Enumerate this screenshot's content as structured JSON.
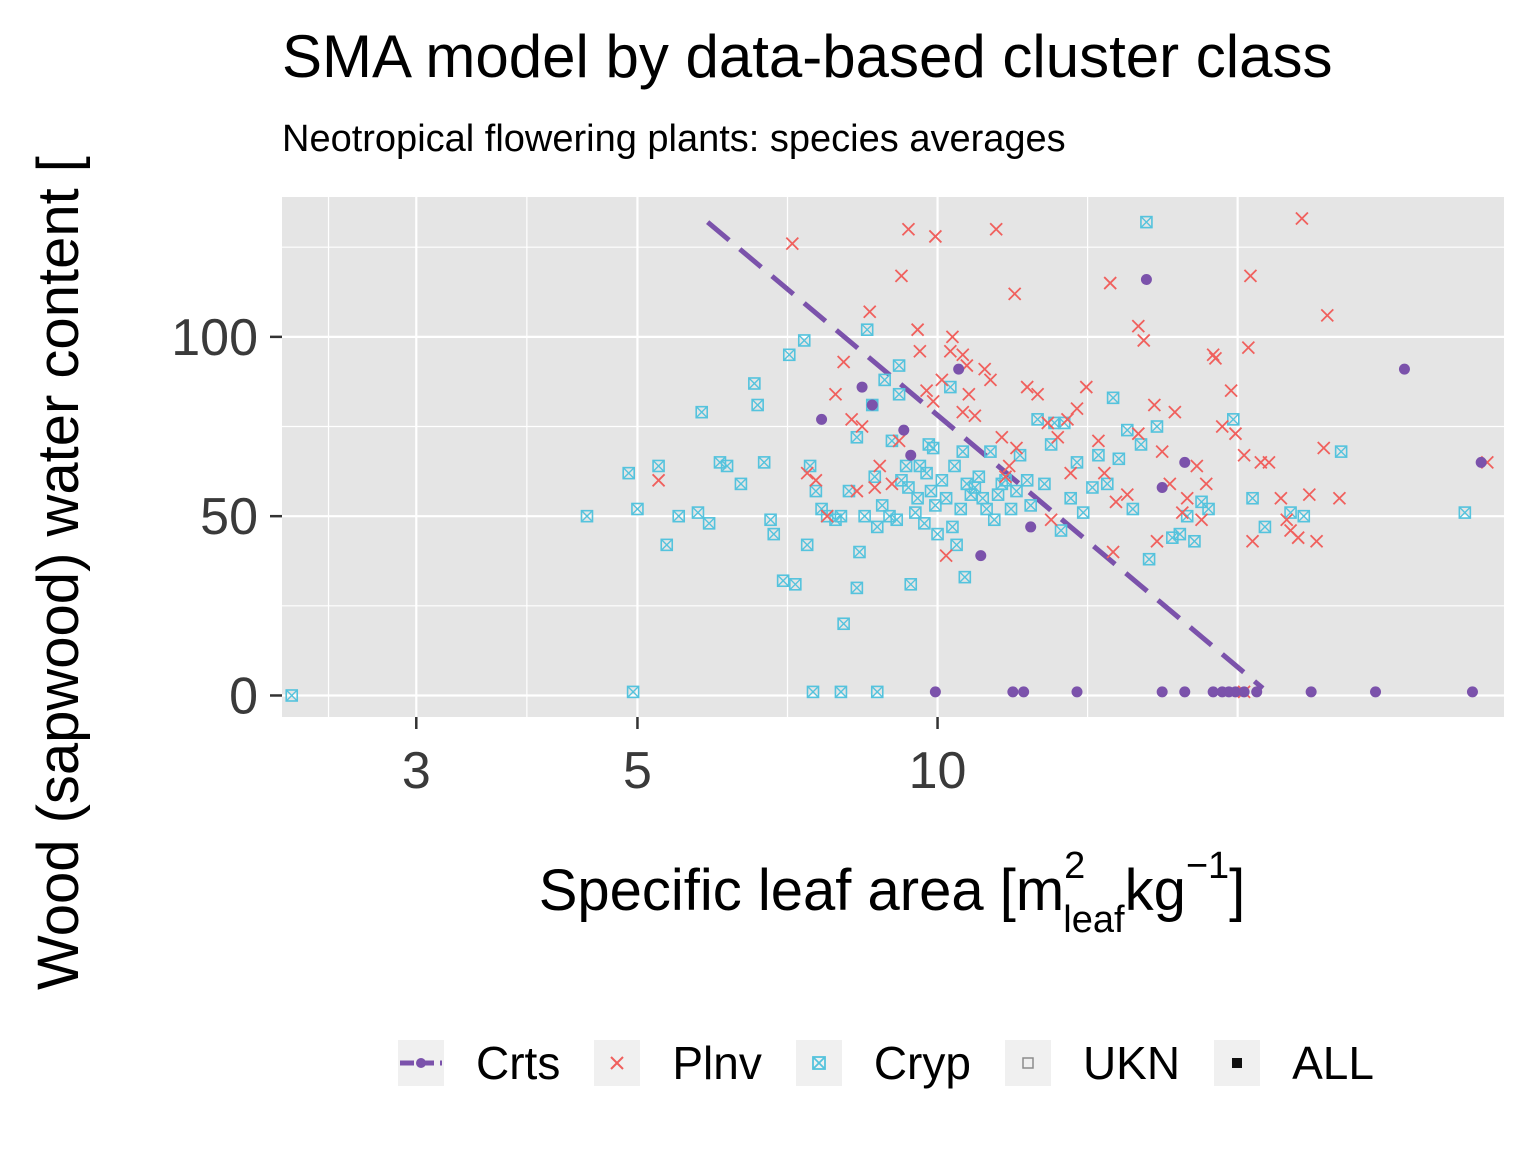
{
  "chart_data": {
    "type": "scatter",
    "title": "SMA model by data-based cluster class",
    "subtitle": "Neotropical flowering plants: species averages",
    "xlabel_main": "Specific leaf area [m",
    "xlabel_sup1": "2",
    "xlabel_sub": "leaf",
    "xlabel_mid": "kg",
    "xlabel_sup2": "−1",
    "xlabel_end": "]",
    "ylabel": "Wood (sapwood) water content [",
    "x_scale": "log",
    "xlim": [
      2.2,
      37
    ],
    "ylim": [
      -6,
      139
    ],
    "x_ticks": [
      3,
      5,
      10
    ],
    "x_tick_labels": [
      "3",
      "5",
      "10"
    ],
    "y_ticks": [
      0,
      50,
      100
    ],
    "y_tick_labels": [
      "0",
      "50",
      "100"
    ],
    "grid": true,
    "legend_position": "bottom",
    "legend": [
      "Crts",
      "Plnv",
      "Cryp",
      "UKN",
      "ALL"
    ],
    "colors": {
      "Crts": "#7b52ab",
      "Plnv": "#f0605d",
      "Cryp": "#55c3dd",
      "UKN": "#8c8c8c",
      "ALL": "#111111",
      "panel": "#e5e5e5",
      "grid": "#ffffff"
    },
    "sma_line": {
      "name": "Crts",
      "x": [
        5.88,
        21.2
      ],
      "y": [
        132,
        2
      ]
    },
    "series": [
      {
        "name": "Crts",
        "marker": "dot",
        "points": [
          [
            7.65,
            77
          ],
          [
            8.4,
            86
          ],
          [
            8.6,
            81
          ],
          [
            9.25,
            74
          ],
          [
            9.4,
            67
          ],
          [
            10.5,
            91
          ],
          [
            11.05,
            39
          ],
          [
            12.4,
            47
          ],
          [
            16.2,
            116
          ],
          [
            16.8,
            58
          ],
          [
            17.7,
            65
          ],
          [
            29.4,
            91
          ],
          [
            35.1,
            65
          ],
          [
            9.95,
            1
          ],
          [
            11.9,
            1
          ],
          [
            12.2,
            1
          ],
          [
            13.8,
            1
          ],
          [
            16.8,
            1
          ],
          [
            17.7,
            1
          ],
          [
            18.9,
            1
          ],
          [
            19.3,
            1
          ],
          [
            19.6,
            1
          ],
          [
            19.9,
            1
          ],
          [
            20.3,
            1
          ],
          [
            20.9,
            1
          ],
          [
            23.7,
            1
          ],
          [
            27.5,
            1
          ],
          [
            34.4,
            1
          ]
        ]
      },
      {
        "name": "Plnv",
        "marker": "x",
        "points": [
          [
            5.25,
            60
          ],
          [
            7.15,
            126
          ],
          [
            7.55,
            60
          ],
          [
            8.05,
            93
          ],
          [
            7.9,
            84
          ],
          [
            8.4,
            75
          ],
          [
            8.55,
            107
          ],
          [
            9.35,
            130
          ],
          [
            9.2,
            117
          ],
          [
            9.55,
            102
          ],
          [
            9.6,
            96
          ],
          [
            9.75,
            85
          ],
          [
            9.95,
            128
          ],
          [
            10.1,
            88
          ],
          [
            10.3,
            96
          ],
          [
            10.35,
            100
          ],
          [
            10.6,
            95
          ],
          [
            10.7,
            92
          ],
          [
            10.75,
            84
          ],
          [
            10.9,
            78
          ],
          [
            11.15,
            91
          ],
          [
            11.45,
            130
          ],
          [
            11.3,
            88
          ],
          [
            11.6,
            72
          ],
          [
            11.8,
            64
          ],
          [
            11.95,
            112
          ],
          [
            12.3,
            86
          ],
          [
            12.6,
            84
          ],
          [
            12.9,
            76
          ],
          [
            13.2,
            72
          ],
          [
            13.6,
            62
          ],
          [
            13.8,
            80
          ],
          [
            14.1,
            86
          ],
          [
            14.5,
            71
          ],
          [
            14.9,
            115
          ],
          [
            15.1,
            54
          ],
          [
            15.5,
            56
          ],
          [
            15.9,
            103
          ],
          [
            16.1,
            99
          ],
          [
            16.5,
            81
          ],
          [
            16.8,
            68
          ],
          [
            17.1,
            59
          ],
          [
            17.8,
            55
          ],
          [
            18.4,
            49
          ],
          [
            18.9,
            95
          ],
          [
            19.3,
            75
          ],
          [
            19.7,
            85
          ],
          [
            19.9,
            73
          ],
          [
            20.3,
            67
          ],
          [
            20.6,
            117
          ],
          [
            20.5,
            97
          ],
          [
            21.1,
            65
          ],
          [
            21.5,
            65
          ],
          [
            22.1,
            55
          ],
          [
            22.6,
            46
          ],
          [
            23.2,
            133
          ],
          [
            23.6,
            56
          ],
          [
            24.0,
            43
          ],
          [
            24.6,
            106
          ],
          [
            24.4,
            69
          ],
          [
            25.3,
            55
          ],
          [
            9.0,
            59
          ],
          [
            8.2,
            77
          ],
          [
            8.75,
            64
          ],
          [
            9.9,
            82
          ],
          [
            10.2,
            39
          ],
          [
            10.6,
            79
          ],
          [
            12.0,
            69
          ],
          [
            13.5,
            77
          ],
          [
            14.7,
            62
          ],
          [
            15.9,
            73
          ],
          [
            16.6,
            43
          ],
          [
            17.3,
            79
          ],
          [
            17.6,
            51
          ],
          [
            18.2,
            64
          ],
          [
            19.0,
            94
          ],
          [
            20.7,
            43
          ],
          [
            22.4,
            49
          ],
          [
            23.0,
            44
          ],
          [
            35.6,
            65
          ],
          [
            20.3,
            1
          ],
          [
            7.4,
            62
          ],
          [
            7.75,
            50
          ],
          [
            8.3,
            57
          ],
          [
            8.65,
            58
          ],
          [
            9.15,
            71
          ],
          [
            11.7,
            61
          ],
          [
            13.0,
            49
          ],
          [
            15.0,
            40
          ],
          [
            18.6,
            59
          ]
        ]
      },
      {
        "name": "Cryp",
        "marker": "boxx",
        "points": [
          [
            2.25,
            0
          ],
          [
            4.45,
            50
          ],
          [
            4.9,
            62
          ],
          [
            5.0,
            52
          ],
          [
            5.25,
            64
          ],
          [
            5.35,
            42
          ],
          [
            5.5,
            50
          ],
          [
            5.75,
            51
          ],
          [
            5.8,
            79
          ],
          [
            5.9,
            48
          ],
          [
            6.05,
            65
          ],
          [
            6.15,
            64
          ],
          [
            6.35,
            59
          ],
          [
            6.55,
            87
          ],
          [
            6.6,
            81
          ],
          [
            6.7,
            65
          ],
          [
            6.8,
            49
          ],
          [
            6.85,
            45
          ],
          [
            7.0,
            32
          ],
          [
            7.1,
            95
          ],
          [
            7.2,
            31
          ],
          [
            7.35,
            99
          ],
          [
            7.4,
            42
          ],
          [
            7.45,
            64
          ],
          [
            7.55,
            57
          ],
          [
            7.65,
            52
          ],
          [
            7.75,
            50
          ],
          [
            7.9,
            49
          ],
          [
            8.0,
            50
          ],
          [
            8.15,
            57
          ],
          [
            8.3,
            72
          ],
          [
            8.35,
            40
          ],
          [
            8.45,
            50
          ],
          [
            8.5,
            102
          ],
          [
            8.6,
            81
          ],
          [
            8.65,
            61
          ],
          [
            8.7,
            47
          ],
          [
            8.8,
            53
          ],
          [
            8.85,
            88
          ],
          [
            8.95,
            50
          ],
          [
            9.0,
            71
          ],
          [
            9.1,
            49
          ],
          [
            9.15,
            92
          ],
          [
            9.2,
            60
          ],
          [
            9.3,
            64
          ],
          [
            9.35,
            58
          ],
          [
            9.4,
            31
          ],
          [
            9.5,
            51
          ],
          [
            9.55,
            55
          ],
          [
            9.6,
            64
          ],
          [
            9.7,
            48
          ],
          [
            9.75,
            62
          ],
          [
            9.8,
            70
          ],
          [
            9.85,
            57
          ],
          [
            9.9,
            69
          ],
          [
            10.0,
            45
          ],
          [
            10.1,
            60
          ],
          [
            10.2,
            55
          ],
          [
            10.3,
            86
          ],
          [
            10.35,
            47
          ],
          [
            10.4,
            64
          ],
          [
            10.45,
            42
          ],
          [
            10.55,
            52
          ],
          [
            10.6,
            68
          ],
          [
            10.65,
            33
          ],
          [
            10.7,
            59
          ],
          [
            10.8,
            56
          ],
          [
            10.9,
            58
          ],
          [
            11.0,
            61
          ],
          [
            11.1,
            55
          ],
          [
            11.2,
            52
          ],
          [
            11.3,
            68
          ],
          [
            11.4,
            49
          ],
          [
            11.5,
            56
          ],
          [
            11.6,
            59
          ],
          [
            11.7,
            60
          ],
          [
            11.85,
            52
          ],
          [
            12.0,
            57
          ],
          [
            12.1,
            67
          ],
          [
            12.3,
            60
          ],
          [
            12.4,
            53
          ],
          [
            12.6,
            77
          ],
          [
            12.8,
            59
          ],
          [
            13.0,
            70
          ],
          [
            13.1,
            76
          ],
          [
            13.3,
            46
          ],
          [
            13.4,
            76
          ],
          [
            13.6,
            55
          ],
          [
            13.8,
            65
          ],
          [
            14.0,
            51
          ],
          [
            14.3,
            58
          ],
          [
            14.5,
            67
          ],
          [
            14.8,
            59
          ],
          [
            15.0,
            83
          ],
          [
            15.2,
            66
          ],
          [
            15.5,
            74
          ],
          [
            15.7,
            52
          ],
          [
            16.0,
            70
          ],
          [
            16.3,
            38
          ],
          [
            16.6,
            75
          ],
          [
            17.2,
            44
          ],
          [
            17.5,
            45
          ],
          [
            17.8,
            50
          ],
          [
            18.1,
            43
          ],
          [
            18.4,
            54
          ],
          [
            18.7,
            52
          ],
          [
            19.8,
            77
          ],
          [
            20.7,
            55
          ],
          [
            21.3,
            47
          ],
          [
            22.6,
            51
          ],
          [
            23.3,
            50
          ],
          [
            25.4,
            68
          ],
          [
            33.8,
            51
          ],
          [
            16.2,
            132
          ],
          [
            7.5,
            1
          ],
          [
            8.0,
            1
          ],
          [
            8.7,
            1
          ],
          [
            4.95,
            1
          ],
          [
            8.05,
            20
          ],
          [
            8.3,
            30
          ],
          [
            9.15,
            84
          ],
          [
            9.95,
            53
          ]
        ]
      }
    ]
  }
}
